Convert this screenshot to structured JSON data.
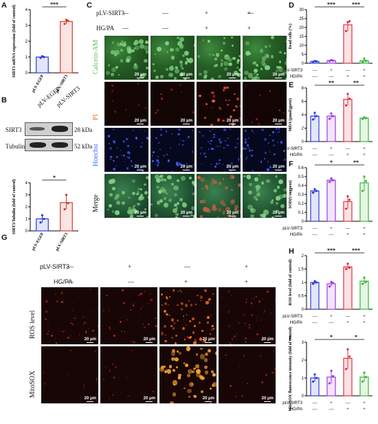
{
  "panels": {
    "A": "A",
    "B": "B",
    "C": "C",
    "D": "D",
    "E": "E",
    "F": "F",
    "G": "G",
    "H": "H",
    "I": "I"
  },
  "groups": {
    "pLV": "pLV-SIRT3",
    "hg": "HG/PA",
    "minus": "—",
    "plus": "+",
    "egfp": "pLV-EGFP",
    "sirt3": "pLV-SIRT3"
  },
  "C": {
    "rows": [
      "Calcein-AM",
      "PI",
      "Hoechst",
      "Merge"
    ],
    "row_colors": [
      "#5fbf5f",
      "#e07020",
      "#3a6cff",
      "#111111"
    ],
    "pLV": [
      "—",
      "+",
      "—",
      "+"
    ],
    "hg": [
      "—",
      "—",
      "+",
      "+"
    ],
    "scale": "20 μm"
  },
  "G": {
    "rows": [
      "ROS level",
      "MitoSOX"
    ],
    "pLV": [
      "—",
      "+",
      "—",
      "+"
    ],
    "hg": [
      "—",
      "—",
      "+",
      "+"
    ],
    "scale": "20 μm"
  },
  "B": {
    "bands": [
      "SIRT3",
      "Tubulin"
    ],
    "sizes": [
      "28 kDa",
      "52 kDa"
    ]
  },
  "sig": {
    "three": "***",
    "two": "**",
    "one": "*"
  },
  "chart_data": [
    {
      "id": "A",
      "type": "bar",
      "categories": [
        "pLV-EGFP",
        "pLV-SIRT3"
      ],
      "values": [
        1.0,
        3.25
      ],
      "ylabel": "SIRT3 mRNA expression (fold of control)",
      "ylim": [
        0,
        4
      ],
      "yticks": [
        0,
        1,
        2,
        3,
        4
      ],
      "colors": [
        "#2a3bd6",
        "#d23a2a"
      ],
      "points": [
        [
          0.95,
          1.05,
          1.0
        ],
        [
          3.1,
          3.35,
          3.3
        ]
      ],
      "sig": [
        [
          "pLV-EGFP",
          "pLV-SIRT3",
          "***"
        ]
      ]
    },
    {
      "id": "B",
      "type": "bar",
      "categories": [
        "pLV-EGFP",
        "pLV-SIRT3"
      ],
      "values": [
        1.0,
        2.35
      ],
      "ylabel": "SIRT3/Tubulin (fold of control)",
      "ylim": [
        0,
        4
      ],
      "yticks": [
        0,
        1,
        2,
        3,
        4
      ],
      "colors": [
        "#2a3bd6",
        "#d23a2a"
      ],
      "points": [
        [
          0.7,
          1.3,
          1.0
        ],
        [
          1.8,
          3.0,
          2.3
        ]
      ],
      "sig": [
        [
          "pLV-EGFP",
          "pLV-SIRT3",
          "*"
        ]
      ]
    },
    {
      "id": "D",
      "type": "bar",
      "categories": [
        "1",
        "2",
        "3",
        "4"
      ],
      "values": [
        1.0,
        1.5,
        21.5,
        1.5
      ],
      "ylabel": "Dead cells (%)",
      "ylim": [
        0,
        30
      ],
      "yticks": [
        0,
        5,
        10,
        15,
        20,
        25,
        30
      ],
      "colors": [
        "#2a3bd6",
        "#9b3be0",
        "#e0303a",
        "#3bb53b"
      ],
      "points": [
        [
          0.8,
          1.2,
          1.0
        ],
        [
          1.2,
          1.8,
          1.5
        ],
        [
          18,
          23,
          23.5
        ],
        [
          0.6,
          2.6,
          1.3
        ]
      ],
      "sig": [
        [
          "1",
          "3",
          "***"
        ],
        [
          "3",
          "4",
          "***"
        ]
      ]
    },
    {
      "id": "E",
      "type": "bar",
      "categories": [
        "1",
        "2",
        "3",
        "4"
      ],
      "values": [
        3.8,
        3.8,
        6.3,
        3.5
      ],
      "ylabel": "MDA (μmol/gprot)",
      "ylim": [
        0,
        8
      ],
      "yticks": [
        0,
        2,
        4,
        6,
        8
      ],
      "colors": [
        "#2a3bd6",
        "#9b3be0",
        "#e0303a",
        "#3bb53b"
      ],
      "points": [
        [
          3.3,
          4.3,
          3.8
        ],
        [
          3.4,
          4.2,
          3.8
        ],
        [
          5.4,
          7.1,
          6.4
        ],
        [
          3.4,
          3.6,
          3.5
        ]
      ],
      "sig": [
        [
          "1",
          "3",
          "**"
        ],
        [
          "3",
          "4",
          "**"
        ]
      ]
    },
    {
      "id": "F",
      "type": "bar",
      "categories": [
        "1",
        "2",
        "3",
        "4"
      ],
      "values": [
        0.34,
        0.46,
        0.22,
        0.43
      ],
      "ylabel": "SOD(U/mgprot)",
      "ylim": [
        0,
        0.6
      ],
      "yticks": [
        0.0,
        0.1,
        0.2,
        0.3,
        0.4,
        0.5,
        0.6
      ],
      "colors": [
        "#2a3bd6",
        "#9b3be0",
        "#e0303a",
        "#3bb53b"
      ],
      "points": [
        [
          0.32,
          0.36,
          0.34
        ],
        [
          0.44,
          0.48,
          0.46
        ],
        [
          0.14,
          0.28,
          0.24
        ],
        [
          0.34,
          0.5,
          0.45
        ]
      ],
      "sig": [
        [
          "1",
          "3",
          "*"
        ],
        [
          "3",
          "4",
          "**"
        ]
      ]
    },
    {
      "id": "H",
      "type": "bar",
      "categories": [
        "1",
        "2",
        "3",
        "4"
      ],
      "values": [
        1.0,
        0.95,
        1.58,
        1.05
      ],
      "ylabel": "ROS level (fold of control)",
      "ylim": [
        0,
        2.0
      ],
      "yticks": [
        0.0,
        0.5,
        1.0,
        1.5,
        2.0
      ],
      "colors": [
        "#2a3bd6",
        "#9b3be0",
        "#e0303a",
        "#3bb53b"
      ],
      "points": [
        [
          0.95,
          1.05,
          1.0
        ],
        [
          0.85,
          1.02,
          0.98
        ],
        [
          1.5,
          1.7,
          1.55
        ],
        [
          0.95,
          1.18,
          1.02
        ]
      ],
      "sig": [
        [
          "1",
          "3",
          "***"
        ],
        [
          "3",
          "4",
          "***"
        ]
      ]
    },
    {
      "id": "I",
      "type": "bar",
      "categories": [
        "1",
        "2",
        "3",
        "4"
      ],
      "values": [
        1.0,
        1.05,
        2.1,
        1.05
      ],
      "ylabel": "MitoSOX fluorescence intensity (fold of control)",
      "ylim": [
        0,
        3
      ],
      "yticks": [
        0,
        1,
        2,
        3
      ],
      "colors": [
        "#2a3bd6",
        "#9b3be0",
        "#e0303a",
        "#3bb53b"
      ],
      "points": [
        [
          0.8,
          1.2,
          1.0
        ],
        [
          0.7,
          1.4,
          1.1
        ],
        [
          1.5,
          2.6,
          2.2
        ],
        [
          0.8,
          1.3,
          1.05
        ]
      ],
      "sig": [
        [
          "1",
          "3",
          "*"
        ],
        [
          "3",
          "4",
          "*"
        ]
      ]
    }
  ]
}
